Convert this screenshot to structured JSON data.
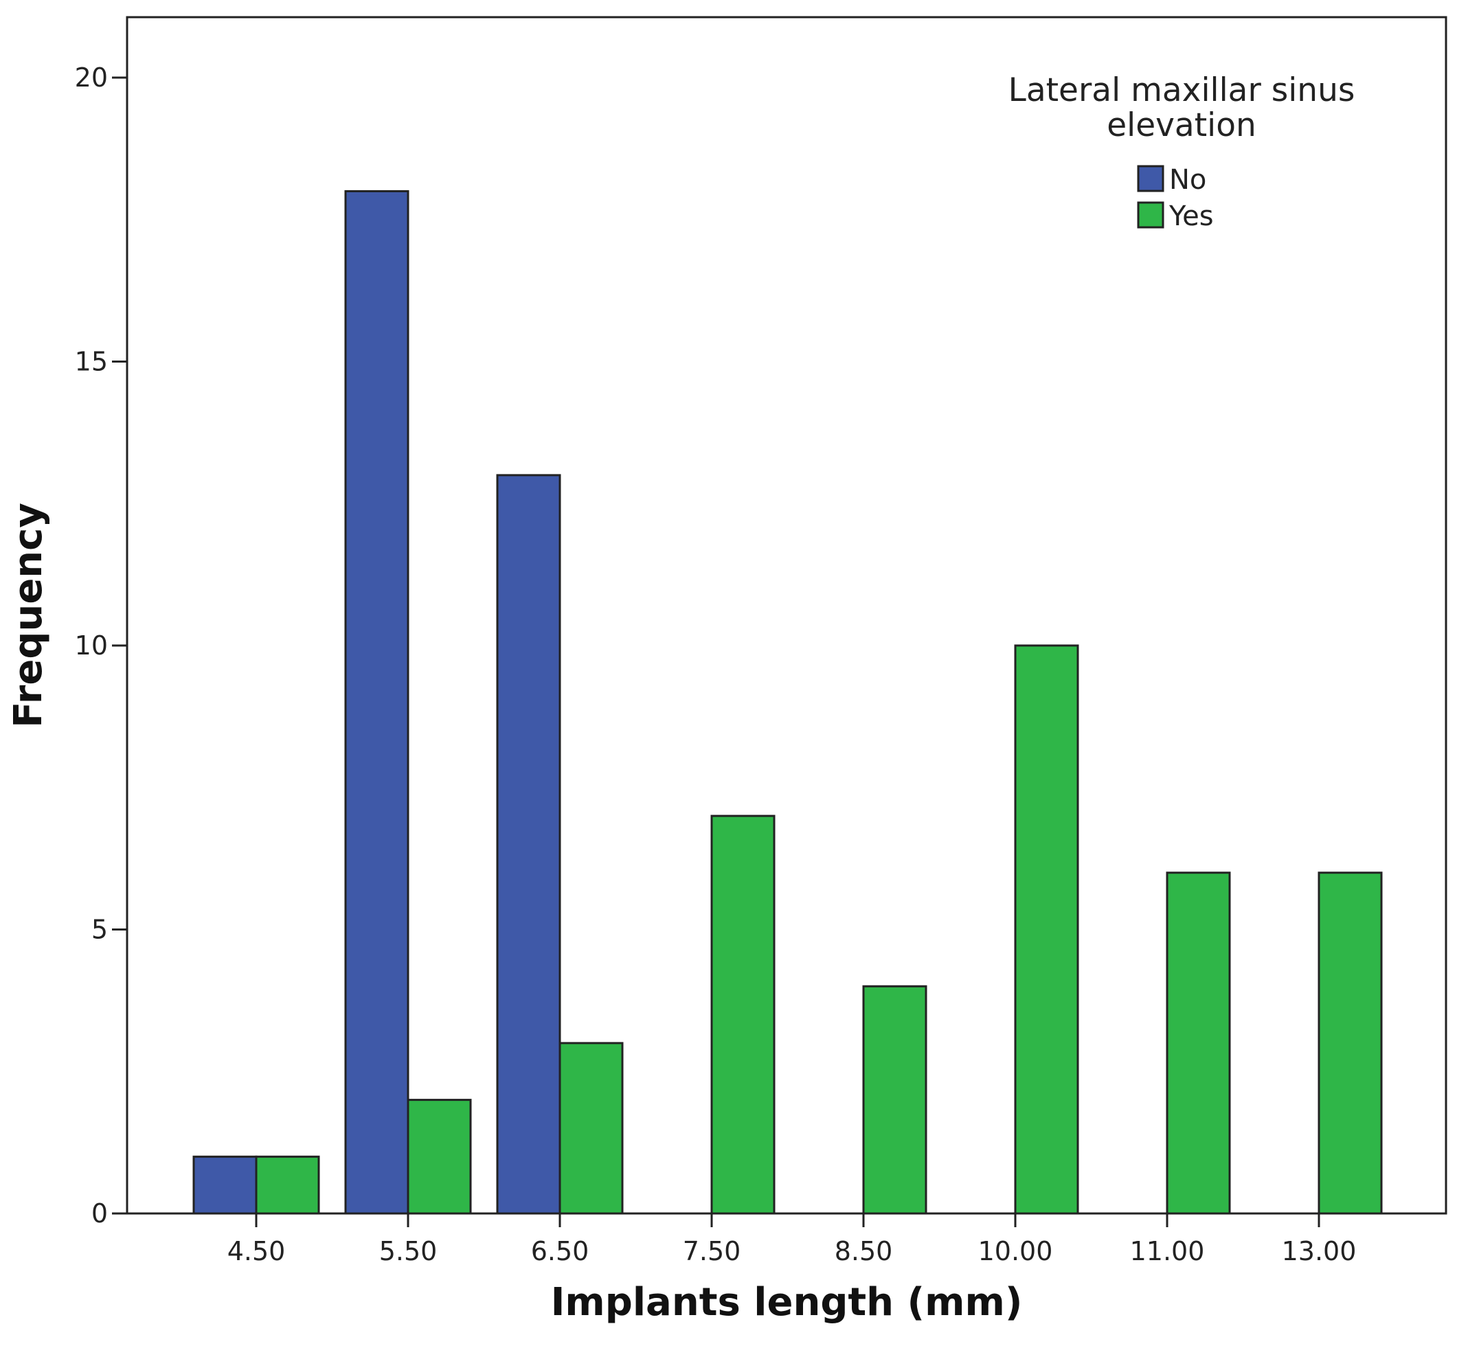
{
  "chart_data": {
    "type": "bar",
    "title": "",
    "xlabel": "Implants length (mm)",
    "ylabel": "Frequency",
    "ylim": [
      0,
      20
    ],
    "yticks": [
      0,
      5,
      10,
      15,
      20
    ],
    "categories": [
      "4.50",
      "5.50",
      "6.50",
      "7.50",
      "8.50",
      "10.00",
      "11.00",
      "13.00"
    ],
    "series": [
      {
        "name": "No",
        "color": "#3f59a8",
        "values": [
          1,
          18,
          13,
          0,
          0,
          0,
          0,
          0
        ]
      },
      {
        "name": "Yes",
        "color": "#2fb648",
        "values": [
          1,
          2,
          3,
          7,
          4,
          10,
          6,
          6
        ]
      }
    ],
    "legend": {
      "title_lines": [
        "Lateral maxillar sinus",
        "elevation"
      ],
      "position": "top-right"
    },
    "grid": false
  }
}
